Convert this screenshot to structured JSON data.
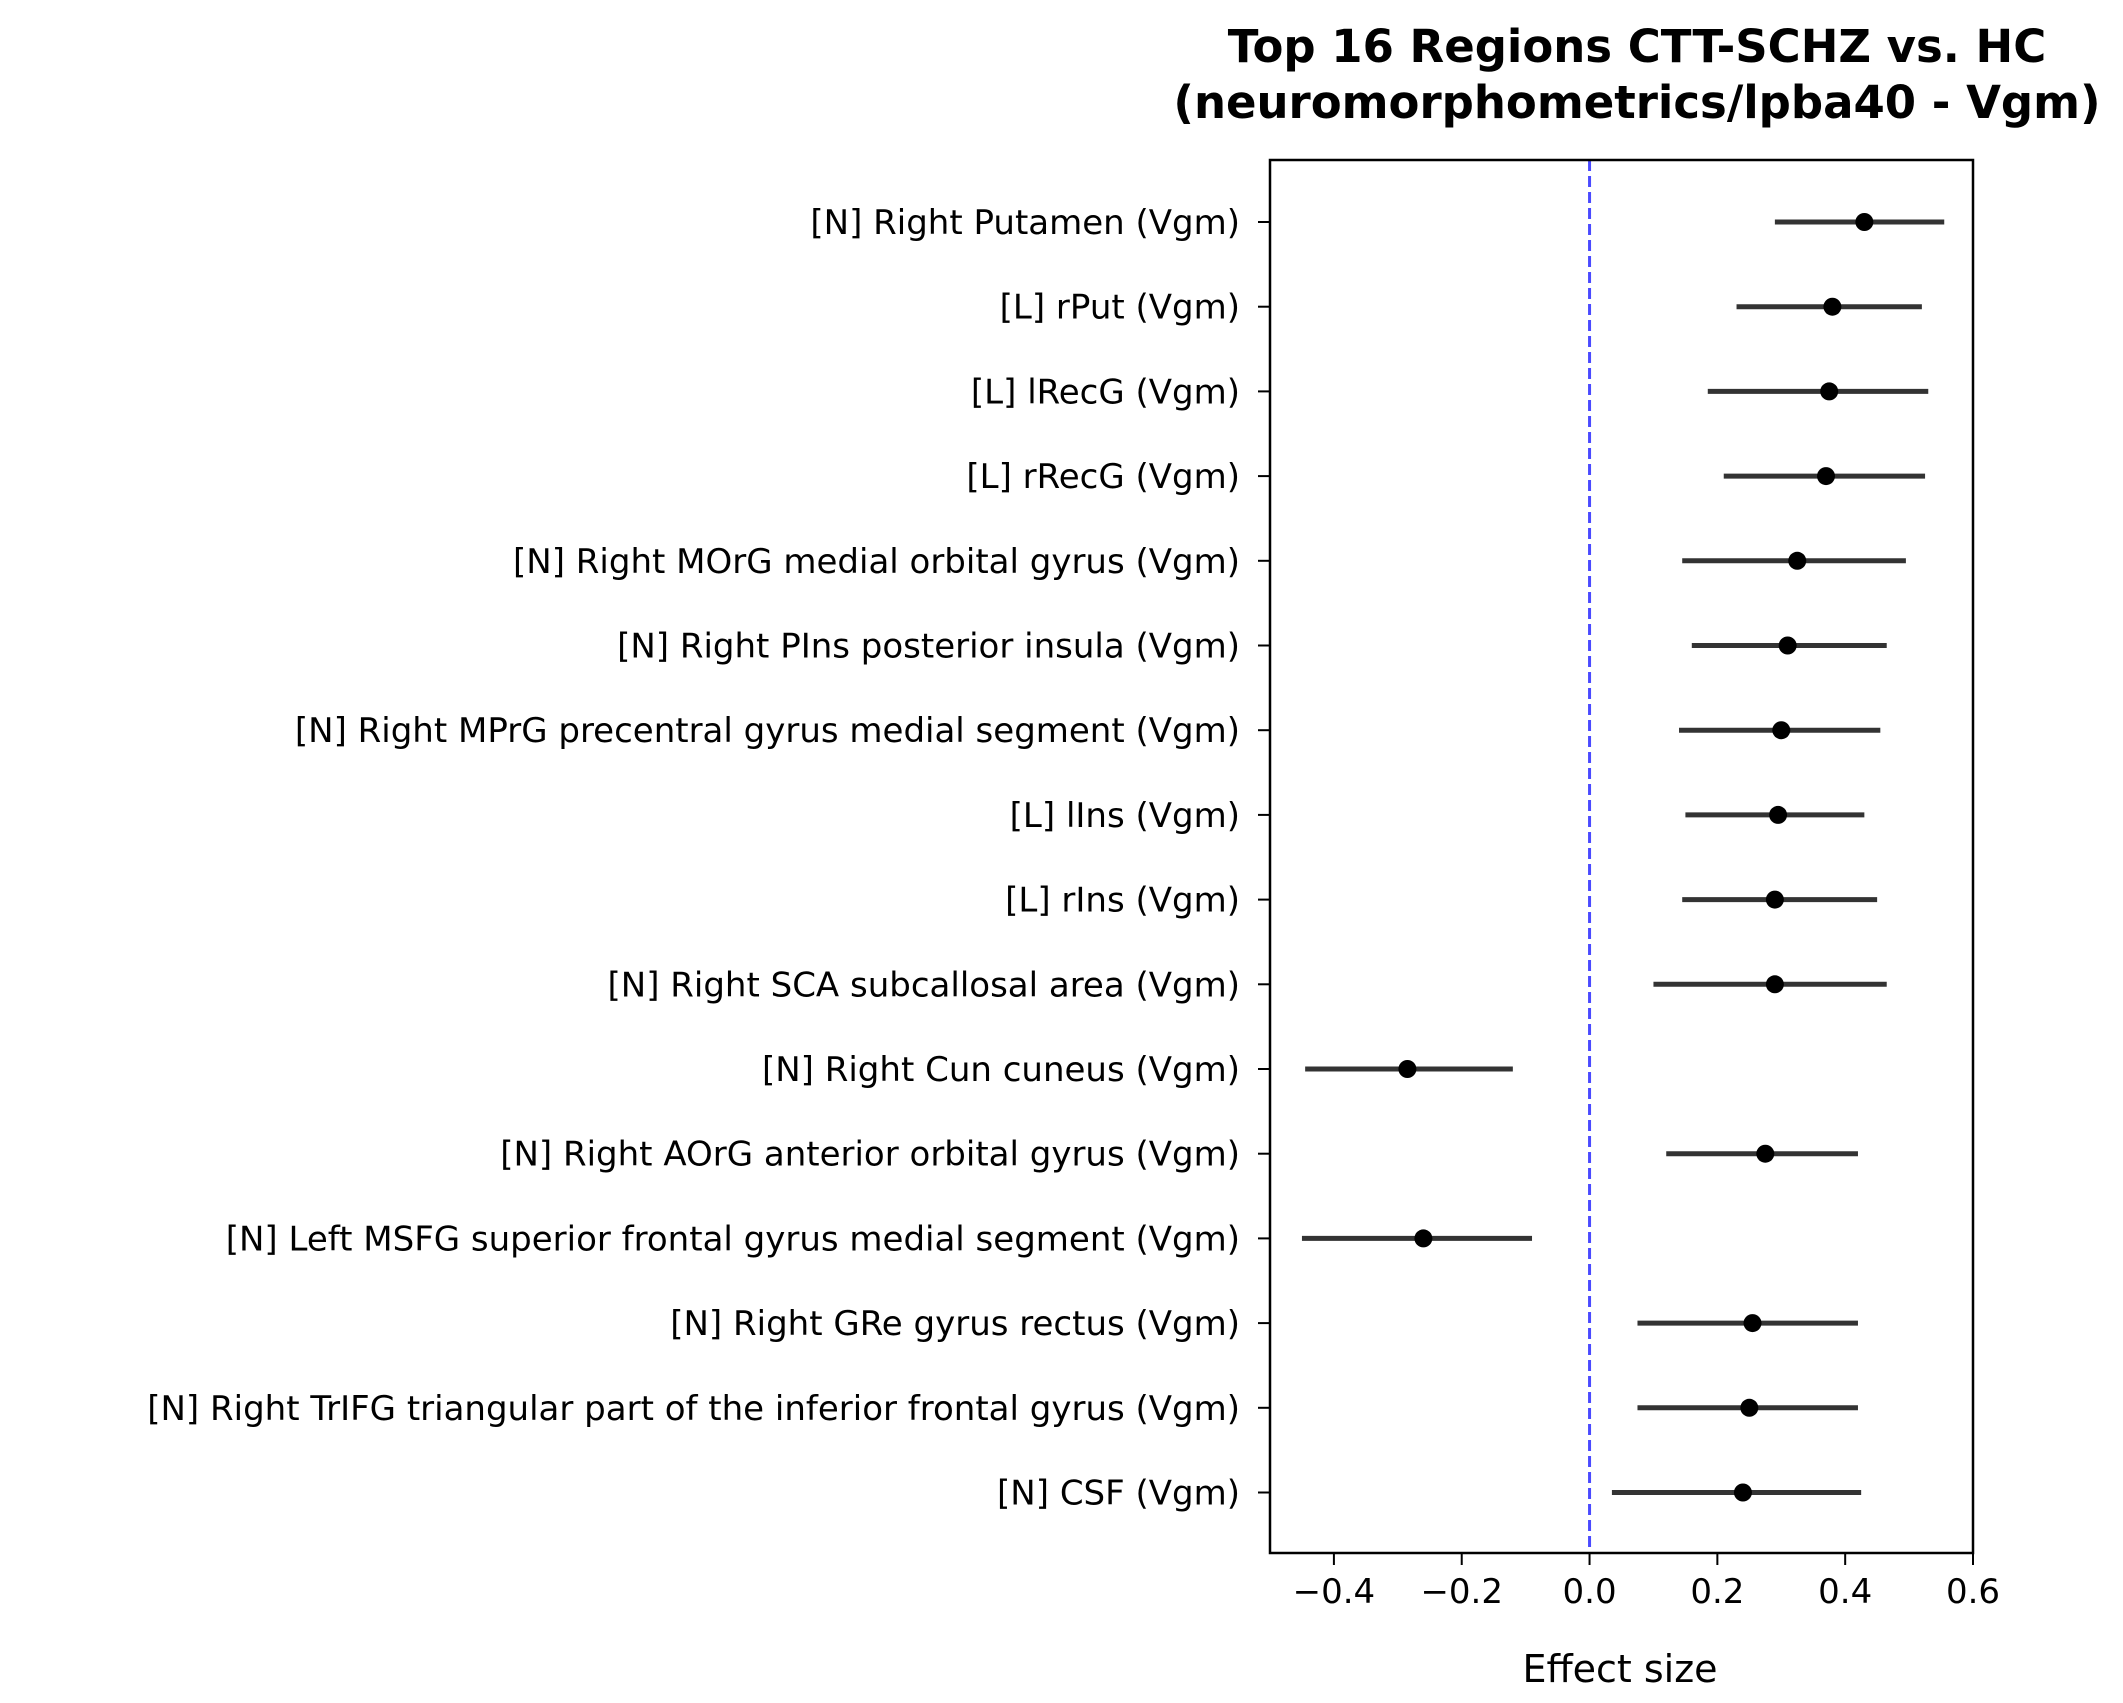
{
  "chart_data": {
    "type": "scatter",
    "subtype": "forest-plot",
    "title_line1": "Top 16 Regions CTT-SCHZ vs. HC",
    "title_line2": "(neuromorphometrics/lpba40 - Vgm)",
    "xlabel": "Effect size",
    "ylabel": "",
    "xlim": [
      -0.5,
      0.6
    ],
    "xticks": [
      -0.4,
      -0.2,
      0.0,
      0.2,
      0.4,
      0.6
    ],
    "xtick_labels": [
      "−0.4",
      "−0.2",
      "0.0",
      "0.2",
      "0.4",
      "0.6"
    ],
    "reference_line": {
      "x": 0.0,
      "style": "dashed",
      "color": "#4a4aff"
    },
    "grid": false,
    "point_color": "#000000",
    "errorbar_color": "#333333",
    "categories": [
      "[N] Right Putamen (Vgm)",
      "[L] rPut (Vgm)",
      "[L] lRecG (Vgm)",
      "[L] rRecG (Vgm)",
      "[N] Right MOrG medial orbital gyrus (Vgm)",
      "[N] Right PIns posterior insula (Vgm)",
      "[N] Right MPrG precentral gyrus medial segment (Vgm)",
      "[L] lIns (Vgm)",
      "[L] rIns (Vgm)",
      "[N] Right SCA subcallosal area (Vgm)",
      "[N] Right Cun cuneus (Vgm)",
      "[N] Right AOrG anterior orbital gyrus (Vgm)",
      "[N] Left MSFG superior frontal gyrus medial segment (Vgm)",
      "[N] Right GRe gyrus rectus (Vgm)",
      "[N] Right TrIFG triangular part of the inferior frontal gyrus (Vgm)",
      "[N] CSF (Vgm)"
    ],
    "values": [
      0.43,
      0.38,
      0.375,
      0.37,
      0.325,
      0.31,
      0.3,
      0.295,
      0.29,
      0.29,
      -0.285,
      0.275,
      -0.26,
      0.255,
      0.25,
      0.24
    ],
    "ci_lower": [
      0.29,
      0.23,
      0.185,
      0.21,
      0.145,
      0.16,
      0.14,
      0.15,
      0.145,
      0.1,
      -0.445,
      0.12,
      -0.45,
      0.075,
      0.075,
      0.035
    ],
    "ci_upper": [
      0.555,
      0.52,
      0.53,
      0.525,
      0.495,
      0.465,
      0.455,
      0.43,
      0.45,
      0.465,
      -0.12,
      0.42,
      -0.09,
      0.42,
      0.42,
      0.425
    ]
  }
}
